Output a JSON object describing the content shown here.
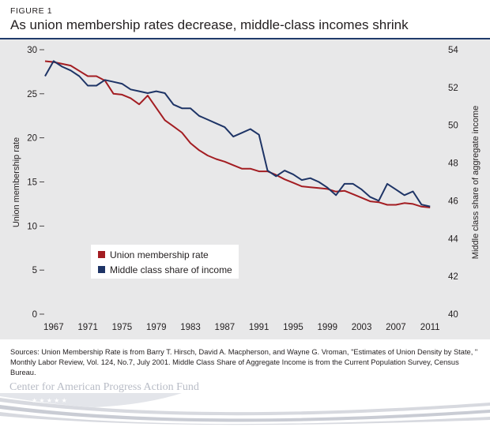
{
  "figure_label": "FIGURE 1",
  "title": "As union membership rates decrease, middle-class incomes shrink",
  "sources": "Sources: Union Membership Rate is from Barry T. Hirsch, David A. Macpherson, and Wayne G. Vroman, \"Estimates of Union Density by State, \" Monthly Labor Review, Vol. 124, No.7, July 2001. Middle Class Share of Aggregate Income is from the Current Population Survey, Census Bureau.",
  "brand": "Center for American Progress Action Fund",
  "colors": {
    "union": "#a31d22",
    "middle": "#1e3466",
    "panel": "#e8e8e9"
  },
  "chart_data": {
    "type": "line",
    "title": "As union membership rates decrease, middle-class incomes shrink",
    "xlabel": "",
    "x_ticks": [
      1967,
      1971,
      1975,
      1979,
      1983,
      1987,
      1991,
      1995,
      1999,
      2003,
      2007,
      2011
    ],
    "xlim": [
      1966,
      2012
    ],
    "y_left": {
      "label": "Union membership rate",
      "range": [
        0,
        30
      ],
      "ticks": [
        0,
        5,
        10,
        15,
        20,
        25,
        30
      ]
    },
    "y_right": {
      "label": "Middle class share of aggregate income",
      "range": [
        40,
        54
      ],
      "ticks": [
        40,
        42,
        44,
        46,
        48,
        50,
        52,
        54
      ]
    },
    "legend": {
      "position": "lower-left",
      "entries": [
        "Union membership rate",
        "Middle class share of income"
      ]
    },
    "series": [
      {
        "name": "Union membership rate",
        "axis": "left",
        "x": [
          1966,
          1967,
          1968,
          1969,
          1970,
          1971,
          1972,
          1973,
          1974,
          1975,
          1976,
          1977,
          1978,
          1979,
          1980,
          1981,
          1982,
          1983,
          1984,
          1985,
          1986,
          1987,
          1988,
          1989,
          1990,
          1991,
          1992,
          1993,
          1994,
          1995,
          1996,
          1997,
          1998,
          1999,
          2000,
          2001,
          2002,
          2003,
          2004,
          2005,
          2006,
          2007,
          2008,
          2009,
          2010,
          2011
        ],
        "values": [
          28.7,
          28.6,
          28.4,
          28.2,
          27.6,
          27.0,
          27.0,
          26.5,
          25.0,
          24.9,
          24.5,
          23.8,
          24.8,
          23.4,
          22.0,
          21.3,
          20.6,
          19.4,
          18.6,
          18.0,
          17.6,
          17.3,
          16.9,
          16.5,
          16.5,
          16.2,
          16.2,
          15.8,
          15.3,
          14.9,
          14.5,
          14.4,
          14.3,
          14.2,
          13.9,
          14.0,
          13.6,
          13.2,
          12.8,
          12.7,
          12.4,
          12.4,
          12.6,
          12.5,
          12.2,
          12.1
        ]
      },
      {
        "name": "Middle class share of income",
        "axis": "right",
        "x": [
          1966,
          1967,
          1968,
          1969,
          1970,
          1971,
          1972,
          1973,
          1974,
          1975,
          1976,
          1977,
          1978,
          1979,
          1980,
          1981,
          1982,
          1983,
          1984,
          1985,
          1986,
          1987,
          1988,
          1989,
          1990,
          1991,
          1992,
          1993,
          1994,
          1995,
          1996,
          1997,
          1998,
          1999,
          2000,
          2001,
          2002,
          2003,
          2004,
          2005,
          2006,
          2007,
          2008,
          2009,
          2010,
          2011
        ],
        "values": [
          52.6,
          53.4,
          53.1,
          52.9,
          52.6,
          52.1,
          52.1,
          52.4,
          52.3,
          52.2,
          51.9,
          51.8,
          51.7,
          51.8,
          51.7,
          51.1,
          50.9,
          50.9,
          50.5,
          50.3,
          50.1,
          49.9,
          49.4,
          49.6,
          49.8,
          49.5,
          47.6,
          47.3,
          47.6,
          47.4,
          47.1,
          47.2,
          47.0,
          46.7,
          46.3,
          46.9,
          46.9,
          46.6,
          46.2,
          46.0,
          46.9,
          46.6,
          46.3,
          46.5,
          45.8,
          45.7
        ]
      }
    ]
  }
}
